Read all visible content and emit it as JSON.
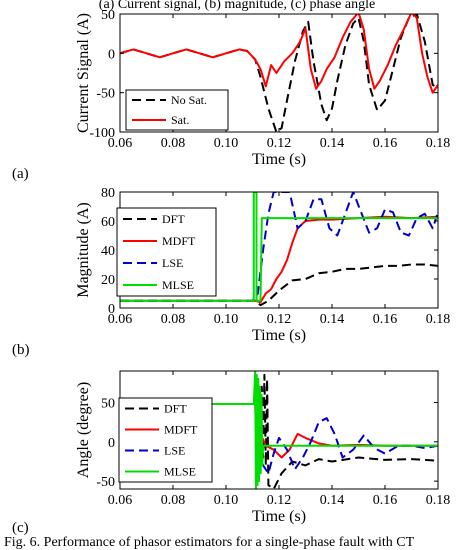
{
  "header_fragment": "(a) Current signal, (b) magnitude, (c) phase angle",
  "caption": "Fig. 6.  Performance of phasor estimators for a single-phase fault with CT",
  "chart_data": [
    {
      "type": "line",
      "panel_label": "(a)",
      "xlabel": "Time (s)",
      "ylabel": "Current Signal (A)",
      "xlim": [
        0.06,
        0.18
      ],
      "ylim": [
        -100,
        50
      ],
      "xticks": [
        0.06,
        0.08,
        0.1,
        0.12,
        0.14,
        0.16,
        0.18
      ],
      "yticks": [
        -100,
        -50,
        0,
        50
      ],
      "legend_position": "bottom-left",
      "series": [
        {
          "name": "No Sat.",
          "color": "#000000",
          "style": "dashed",
          "x": [
            0.06,
            0.065,
            0.07,
            0.075,
            0.08,
            0.085,
            0.09,
            0.095,
            0.1,
            0.105,
            0.108,
            0.111,
            0.113,
            0.116,
            0.119,
            0.121,
            0.123,
            0.126,
            0.129,
            0.131,
            0.133,
            0.136,
            0.138,
            0.14,
            0.142,
            0.145,
            0.148,
            0.15,
            0.152,
            0.154,
            0.157,
            0.16,
            0.163,
            0.166,
            0.169,
            0.172,
            0.175,
            0.178,
            0.18
          ],
          "y": [
            0,
            5,
            0,
            -5,
            0,
            5,
            0,
            -5,
            0,
            5,
            3,
            -8,
            -30,
            -70,
            -100,
            -95,
            -60,
            -10,
            28,
            40,
            -10,
            -65,
            -85,
            -70,
            -35,
            10,
            38,
            45,
            15,
            -40,
            -72,
            -60,
            -20,
            20,
            45,
            50,
            15,
            -40,
            -45
          ]
        },
        {
          "name": "Sat.",
          "color": "#ff0000",
          "style": "solid",
          "x": [
            0.06,
            0.065,
            0.07,
            0.075,
            0.08,
            0.085,
            0.09,
            0.095,
            0.1,
            0.105,
            0.108,
            0.111,
            0.113,
            0.115,
            0.117,
            0.119,
            0.122,
            0.125,
            0.128,
            0.13,
            0.132,
            0.134,
            0.136,
            0.138,
            0.141,
            0.144,
            0.147,
            0.15,
            0.152,
            0.154,
            0.156,
            0.158,
            0.161,
            0.164,
            0.167,
            0.17,
            0.172,
            0.174,
            0.176,
            0.178,
            0.18
          ],
          "y": [
            0,
            5,
            0,
            -5,
            0,
            5,
            0,
            -5,
            0,
            5,
            3,
            -8,
            -20,
            -42,
            -15,
            -25,
            -10,
            0,
            15,
            32,
            -20,
            -45,
            -35,
            -20,
            -5,
            20,
            40,
            52,
            30,
            -20,
            -45,
            -35,
            -15,
            10,
            30,
            52,
            45,
            0,
            -30,
            -50,
            -40
          ]
        }
      ]
    },
    {
      "type": "line",
      "panel_label": "(b)",
      "xlabel": "Time (s)",
      "ylabel": "Magnitude (A)",
      "xlim": [
        0.06,
        0.18
      ],
      "ylim": [
        0,
        80
      ],
      "xticks": [
        0.06,
        0.08,
        0.1,
        0.12,
        0.14,
        0.16,
        0.18
      ],
      "yticks": [
        0,
        20,
        40,
        60,
        80
      ],
      "legend_position": "top-left",
      "series": [
        {
          "name": "DFT",
          "color": "#000000",
          "style": "dashed",
          "x": [
            0.06,
            0.1,
            0.111,
            0.113,
            0.116,
            0.12,
            0.125,
            0.13,
            0.135,
            0.14,
            0.145,
            0.15,
            0.155,
            0.16,
            0.165,
            0.17,
            0.175,
            0.18
          ],
          "y": [
            5,
            5,
            5,
            2,
            5,
            12,
            19,
            20,
            24,
            25,
            27,
            27,
            28,
            29,
            29,
            30,
            30,
            29
          ]
        },
        {
          "name": "MDFT",
          "color": "#ff0000",
          "style": "solid",
          "x": [
            0.06,
            0.1,
            0.111,
            0.113,
            0.115,
            0.117,
            0.119,
            0.121,
            0.123,
            0.125,
            0.127,
            0.13,
            0.135,
            0.14,
            0.15,
            0.16,
            0.17,
            0.18
          ],
          "y": [
            5,
            5,
            5,
            4,
            10,
            13,
            20,
            25,
            33,
            45,
            55,
            60,
            61,
            61,
            62,
            63,
            62,
            63
          ]
        },
        {
          "name": "LSE",
          "color": "#0000cc",
          "style": "dashed",
          "x": [
            0.06,
            0.11,
            0.112,
            0.114,
            0.116,
            0.118,
            0.121,
            0.124,
            0.127,
            0.13,
            0.133,
            0.136,
            0.139,
            0.142,
            0.145,
            0.148,
            0.151,
            0.154,
            0.157,
            0.16,
            0.163,
            0.166,
            0.169,
            0.172,
            0.175,
            0.178,
            0.18
          ],
          "y": [
            5,
            5,
            10,
            40,
            65,
            80,
            80,
            80,
            55,
            60,
            75,
            75,
            55,
            50,
            65,
            80,
            66,
            52,
            55,
            68,
            66,
            52,
            50,
            62,
            65,
            55,
            66
          ]
        },
        {
          "name": "MLSE",
          "color": "#00dd00",
          "style": "solid",
          "x": [
            0.06,
            0.1105,
            0.1105,
            0.1115,
            0.1115,
            0.113,
            0.1135,
            0.115,
            0.18
          ],
          "y": [
            5,
            5,
            80,
            80,
            5,
            5,
            62,
            62,
            62
          ]
        }
      ]
    },
    {
      "type": "line",
      "panel_label": "(c)",
      "xlabel": "Time (s)",
      "ylabel": "Angle (degree)",
      "xlim": [
        0.06,
        0.18
      ],
      "ylim": [
        -60,
        90
      ],
      "xticks": [
        0.06,
        0.08,
        0.1,
        0.12,
        0.14,
        0.16,
        0.18
      ],
      "yticks": [
        -50,
        0,
        50
      ],
      "legend_position": "left",
      "series": [
        {
          "name": "DFT",
          "color": "#000000",
          "style": "dashed",
          "x": [
            0.06,
            0.113,
            0.1135,
            0.114,
            0.1145,
            0.115,
            0.1155,
            0.116,
            0.118,
            0.121,
            0.125,
            0.13,
            0.135,
            0.14,
            0.15,
            0.16,
            0.17,
            0.18
          ],
          "y": [
            48,
            48,
            70,
            -20,
            85,
            -30,
            80,
            -55,
            -60,
            -40,
            -25,
            -30,
            -22,
            -25,
            -20,
            -23,
            -22,
            -24
          ]
        },
        {
          "name": "MDFT",
          "color": "#ff0000",
          "style": "solid",
          "x": [
            0.06,
            0.111,
            0.1115,
            0.112,
            0.1125,
            0.113,
            0.115,
            0.118,
            0.121,
            0.124,
            0.127,
            0.13,
            0.135,
            0.14,
            0.15,
            0.16,
            0.17,
            0.18
          ],
          "y": [
            48,
            48,
            -10,
            50,
            40,
            10,
            -5,
            -10,
            -20,
            -10,
            10,
            5,
            -2,
            -5,
            -4,
            -5,
            -5,
            -5
          ]
        },
        {
          "name": "LSE",
          "color": "#0000cc",
          "style": "dashed",
          "x": [
            0.06,
            0.111,
            0.112,
            0.114,
            0.116,
            0.118,
            0.12,
            0.123,
            0.126,
            0.129,
            0.132,
            0.135,
            0.138,
            0.141,
            0.144,
            0.148,
            0.152,
            0.156,
            0.16,
            0.165,
            0.17,
            0.175,
            0.18
          ],
          "y": [
            48,
            48,
            -10,
            -30,
            -40,
            -15,
            5,
            -10,
            -35,
            -20,
            0,
            25,
            30,
            10,
            -20,
            -10,
            8,
            -8,
            -15,
            -5,
            -5,
            -8,
            -5
          ]
        },
        {
          "name": "MLSE",
          "color": "#00dd00",
          "style": "solid",
          "x": [
            0.06,
            0.1105,
            0.111,
            0.1113,
            0.1116,
            0.1119,
            0.1122,
            0.1125,
            0.1128,
            0.1131,
            0.1134,
            0.1137,
            0.114,
            0.1145,
            0.18
          ],
          "y": [
            48,
            48,
            90,
            -60,
            85,
            -55,
            80,
            -50,
            70,
            -40,
            60,
            -30,
            -5,
            -5,
            -5
          ]
        }
      ]
    }
  ]
}
